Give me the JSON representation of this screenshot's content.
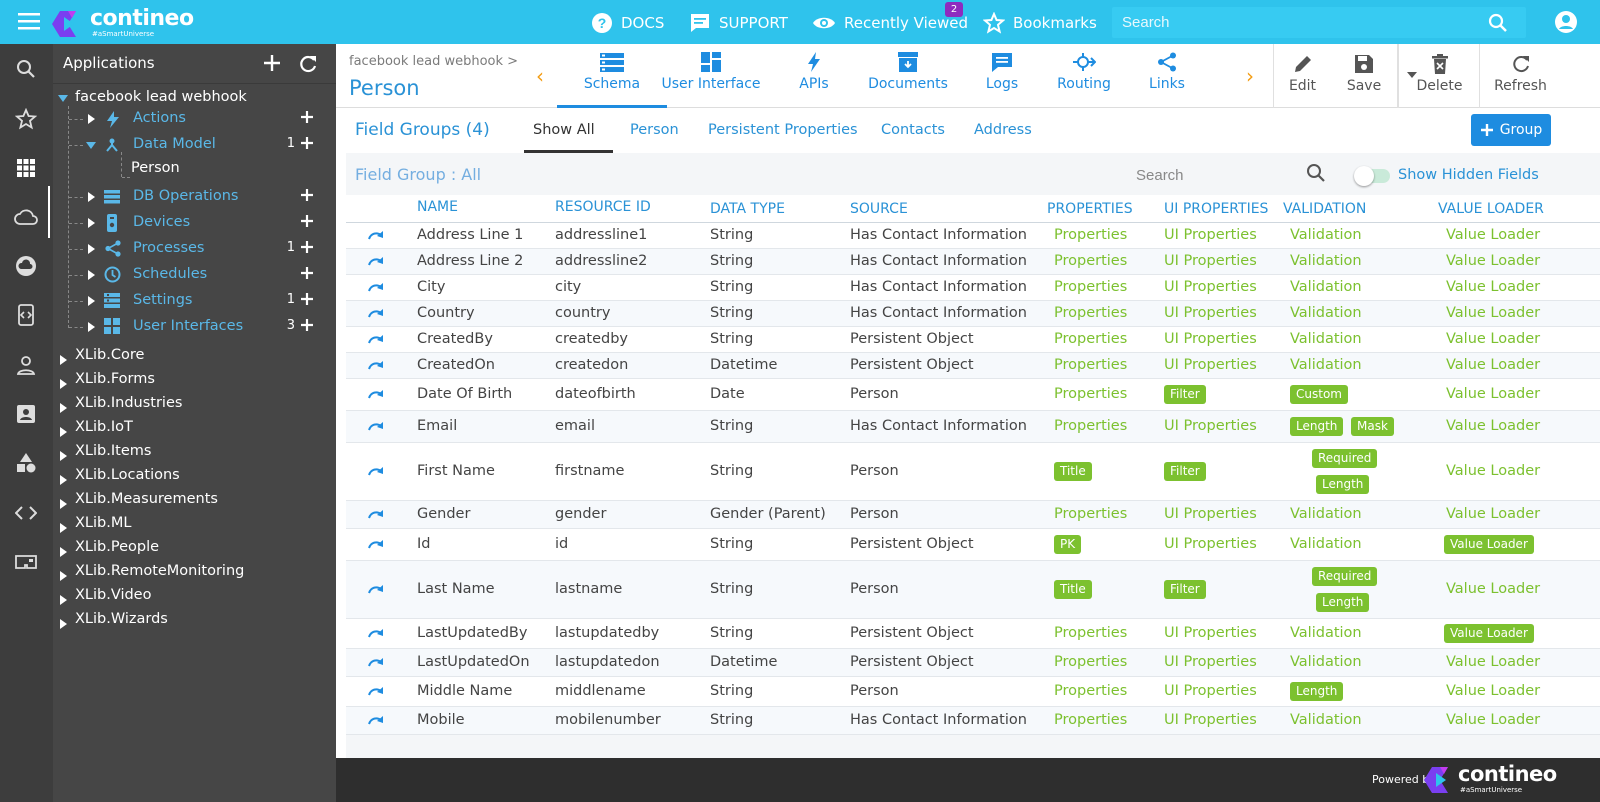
{
  "topbar": {
    "brand": "contineo",
    "tagline": "#aSmartUniverse",
    "docs": "DOCS",
    "support": "SUPPORT",
    "recently_viewed": "Recently Viewed",
    "recently_viewed_count": "2",
    "bookmarks": "Bookmarks",
    "search_placeholder": "Search"
  },
  "tree": {
    "title": "Applications",
    "root": "facebook lead webhook",
    "items": [
      {
        "label": "Actions",
        "icon": "bolt-icon",
        "count": ""
      },
      {
        "label": "Data Model",
        "icon": "data-model-icon",
        "count": "1"
      },
      {
        "label": "DB Operations",
        "icon": "db-icon",
        "count": ""
      },
      {
        "label": "Devices",
        "icon": "device-icon",
        "count": ""
      },
      {
        "label": "Processes",
        "icon": "share-icon",
        "count": "1"
      },
      {
        "label": "Schedules",
        "icon": "clock-icon",
        "count": ""
      },
      {
        "label": "Settings",
        "icon": "settings-icon",
        "count": "1"
      },
      {
        "label": "User Interfaces",
        "icon": "grid-icon",
        "count": "3"
      }
    ],
    "data_model_child": "Person",
    "libraries": [
      "XLib.Core",
      "XLib.Forms",
      "XLib.Industries",
      "XLib.IoT",
      "XLib.Items",
      "XLib.Locations",
      "XLib.Measurements",
      "XLib.ML",
      "XLib.People",
      "XLib.RemoteMonitoring",
      "XLib.Video",
      "XLib.Wizards"
    ]
  },
  "header": {
    "breadcrumb": "facebook lead webhook >",
    "title": "Person",
    "tabs": [
      "Schema",
      "User Interface",
      "APIs",
      "Documents",
      "Logs",
      "Routing",
      "Links"
    ],
    "actions": [
      "Edit",
      "Save",
      "Delete",
      "Refresh"
    ]
  },
  "field_groups": {
    "title": "Field Groups (4)",
    "tabs": [
      "Show All",
      "Person",
      "Persistent Properties",
      "Contacts",
      "Address"
    ],
    "group_button": "Group",
    "subtitle": "Field Group : All",
    "search_placeholder": "Search",
    "show_hidden": "Show Hidden Fields"
  },
  "table": {
    "columns": [
      "NAME",
      "RESOURCE ID",
      "DATA TYPE",
      "SOURCE",
      "PROPERTIES",
      "UI PROPERTIES",
      "VALIDATION",
      "VALUE LOADER"
    ],
    "rows": [
      {
        "name": "Address Line 1",
        "rid": "addressline1",
        "type": "String",
        "source": "Has Contact Information",
        "props": "Properties",
        "ui": "UI Properties",
        "valid": "Validation",
        "loader": "Value Loader"
      },
      {
        "name": "Address Line 2",
        "rid": "addressline2",
        "type": "String",
        "source": "Has Contact Information",
        "props": "Properties",
        "ui": "UI Properties",
        "valid": "Validation",
        "loader": "Value Loader"
      },
      {
        "name": "City",
        "rid": "city",
        "type": "String",
        "source": "Has Contact Information",
        "props": "Properties",
        "ui": "UI Properties",
        "valid": "Validation",
        "loader": "Value Loader"
      },
      {
        "name": "Country",
        "rid": "country",
        "type": "String",
        "source": "Has Contact Information",
        "props": "Properties",
        "ui": "UI Properties",
        "valid": "Validation",
        "loader": "Value Loader"
      },
      {
        "name": "CreatedBy",
        "rid": "createdby",
        "type": "String",
        "source": "Persistent Object",
        "props": "Properties",
        "ui": "UI Properties",
        "valid": "Validation",
        "loader": "Value Loader"
      },
      {
        "name": "CreatedOn",
        "rid": "createdon",
        "type": "Datetime",
        "source": "Persistent Object",
        "props": "Properties",
        "ui": "UI Properties",
        "valid": "Validation",
        "loader": "Value Loader"
      },
      {
        "name": "Date Of Birth",
        "rid": "dateofbirth",
        "type": "Date",
        "source": "Person",
        "props": "Properties",
        "ui_badge": "Filter",
        "valid_badges": [
          "Custom"
        ],
        "loader": "Value Loader"
      },
      {
        "name": "Email",
        "rid": "email",
        "type": "String",
        "source": "Has Contact Information",
        "props": "Properties",
        "ui": "UI Properties",
        "valid_badges": [
          "Length",
          "Mask"
        ],
        "loader": "Value Loader"
      },
      {
        "name": "First Name",
        "rid": "firstname",
        "type": "String",
        "source": "Person",
        "props_badge": "Title",
        "ui_badge": "Filter",
        "valid_stack": [
          "Required",
          "Length"
        ],
        "loader": "Value Loader"
      },
      {
        "name": "Gender",
        "rid": "gender",
        "type": "Gender (Parent)",
        "source": "Person",
        "props": "Properties",
        "ui": "UI Properties",
        "valid": "Validation",
        "loader": "Value Loader"
      },
      {
        "name": "Id",
        "rid": "id",
        "type": "String",
        "source": "Persistent Object",
        "props_badge": "PK",
        "ui": "UI Properties",
        "valid": "Validation",
        "loader_badge": "Value Loader"
      },
      {
        "name": "Last Name",
        "rid": "lastname",
        "type": "String",
        "source": "Person",
        "props_badge": "Title",
        "ui_badge": "Filter",
        "valid_stack": [
          "Required",
          "Length"
        ],
        "loader": "Value Loader"
      },
      {
        "name": "LastUpdatedBy",
        "rid": "lastupdatedby",
        "type": "String",
        "source": "Persistent Object",
        "props": "Properties",
        "ui": "UI Properties",
        "valid": "Validation",
        "loader_badge": "Value Loader"
      },
      {
        "name": "LastUpdatedOn",
        "rid": "lastupdatedon",
        "type": "Datetime",
        "source": "Persistent Object",
        "props": "Properties",
        "ui": "UI Properties",
        "valid": "Validation",
        "loader": "Value Loader"
      },
      {
        "name": "Middle Name",
        "rid": "middlename",
        "type": "String",
        "source": "Person",
        "props": "Properties",
        "ui": "UI Properties",
        "valid_badges": [
          "Length"
        ],
        "loader": "Value Loader"
      },
      {
        "name": "Mobile",
        "rid": "mobilenumber",
        "type": "String",
        "source": "Has Contact Information",
        "props": "Properties",
        "ui": "UI Properties",
        "valid": "Validation",
        "loader": "Value Loader"
      }
    ]
  },
  "footer": {
    "powered_by": "Powered by",
    "brand": "contineo",
    "tagline": "#aSmartUniverse"
  },
  "colors": {
    "topbar": "#2fc3ec",
    "accent_blue": "#2a92d6",
    "link_green": "#7cc12f",
    "sidebar_dark": "#3d3d3d",
    "tree_bg": "#464646",
    "warning_orange": "#f39c12"
  }
}
